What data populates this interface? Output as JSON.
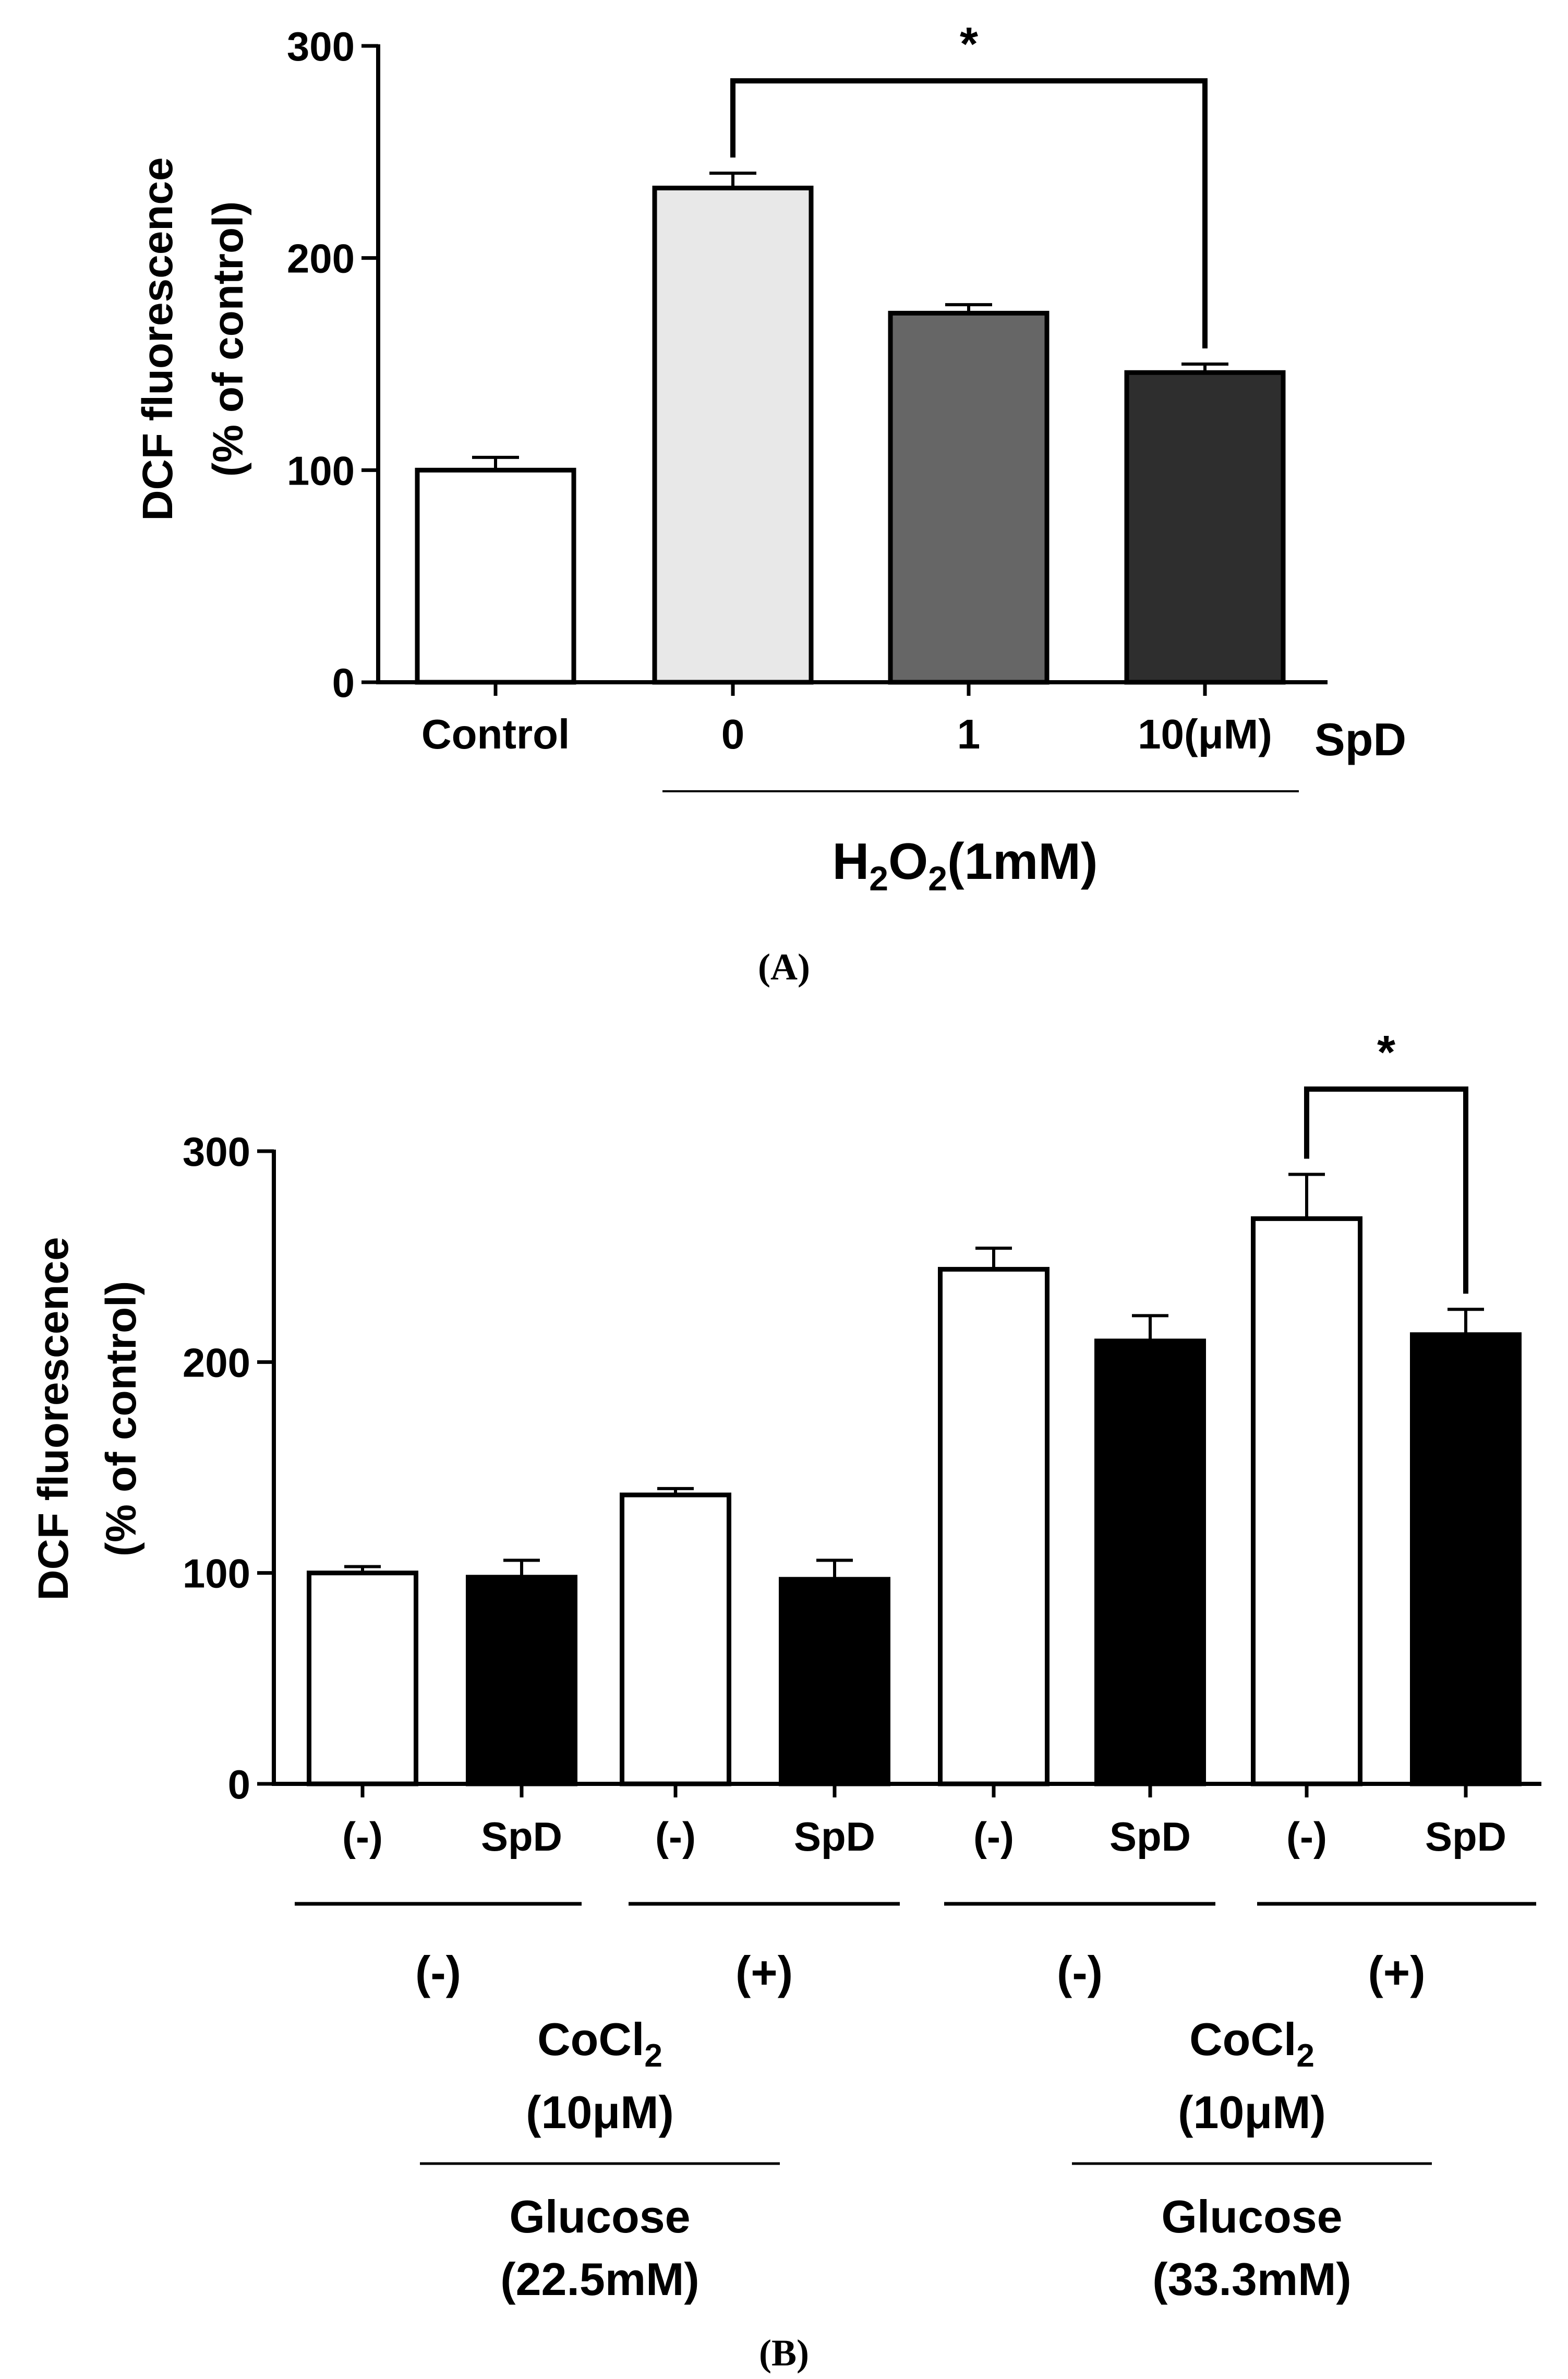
{
  "chart_data": [
    {
      "panel": "A",
      "panel_label": "(A)",
      "type": "bar",
      "ylabel_line1": "DCF fluorescence",
      "ylabel_line2": "(%  of control)",
      "ylim": [
        0,
        300
      ],
      "yticks": [
        "0",
        "100",
        "200",
        "300"
      ],
      "categories": [
        "Control",
        "0",
        "1",
        "10(μM)"
      ],
      "values": [
        100,
        233,
        174,
        146
      ],
      "errors": [
        6,
        7,
        4,
        4
      ],
      "bar_colors": [
        "#ffffff",
        "#e8e8e8",
        "#666666",
        "#2e2e2e"
      ],
      "group_suffix": "SpD",
      "treatment_label": {
        "main": "H",
        "sub1": "2",
        "mid": "O",
        "sub2": "2",
        "tail": "(1mM)"
      },
      "significance": {
        "from": 1,
        "to": 3,
        "label": "*"
      }
    },
    {
      "panel": "B",
      "panel_label": "(B)",
      "type": "bar",
      "ylabel_line1": "DCF fluorescence",
      "ylabel_line2": "(%  of control)",
      "ylim": [
        0,
        300
      ],
      "yticks": [
        "0",
        "100",
        "200",
        "300"
      ],
      "categories": [
        "(-)",
        "SpD",
        "(-)",
        "SpD",
        "(-)",
        "SpD",
        "(-)",
        "SpD"
      ],
      "values": [
        100,
        98,
        137,
        97,
        244,
        210,
        268,
        213
      ],
      "errors": [
        3,
        8,
        3,
        9,
        10,
        12,
        21,
        12
      ],
      "bar_colors": [
        "#ffffff",
        "#000000",
        "#ffffff",
        "#000000",
        "#ffffff",
        "#000000",
        "#ffffff",
        "#000000"
      ],
      "cocl2_levels": [
        "(-)",
        "(+)",
        "(-)",
        "(+)"
      ],
      "cocl2_label": {
        "main": "CoCl",
        "sub": "2",
        "conc": "(10μM)"
      },
      "glucose_labels": [
        {
          "line1": "Glucose",
          "line2": "(22.5mM)"
        },
        {
          "line1": "Glucose",
          "line2": "(33.3mM)"
        }
      ],
      "significance": {
        "from": 6,
        "to": 7,
        "label": "*"
      }
    }
  ]
}
